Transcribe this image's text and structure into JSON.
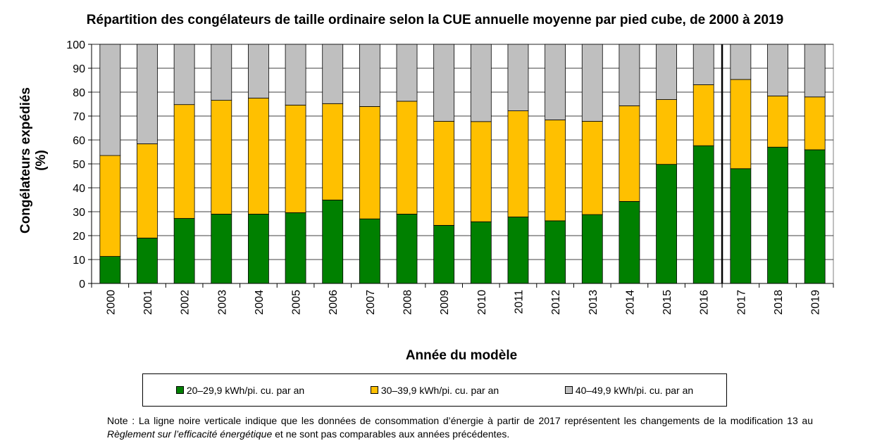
{
  "chart_data": {
    "type": "bar",
    "stacked": true,
    "title": "Répartition des congélateurs de taille ordinaire selon la CUE annuelle moyenne par pied cube, de 2000 à 2019",
    "xlabel": "Année du modèle",
    "ylabel_lines": [
      "Congélateurs expédiés",
      "(%)"
    ],
    "ylim": [
      0,
      100
    ],
    "yticks": [
      0,
      10,
      20,
      30,
      40,
      50,
      60,
      70,
      80,
      90,
      100
    ],
    "grid": true,
    "legend_position": "bottom",
    "categories": [
      "2000",
      "2001",
      "2002",
      "2003",
      "2004",
      "2005",
      "2006",
      "2007",
      "2008",
      "2009",
      "2010",
      "2011",
      "2012",
      "2013",
      "2014",
      "2015",
      "2016",
      "2017",
      "2018",
      "2019"
    ],
    "series": [
      {
        "name": "20–29,9 kWh/pi. cu. par an",
        "color": "#008000",
        "values": [
          11.3,
          19,
          27.2,
          29,
          29,
          29.6,
          34.9,
          27,
          29,
          24.3,
          25.8,
          27.8,
          26.2,
          28.8,
          34.3,
          49.8,
          57.6,
          48,
          57,
          55.9
        ]
      },
      {
        "name": "30–39,9 kWh/pi. cu. par an",
        "color": "#FFC000",
        "values": [
          42.2,
          39.4,
          47.6,
          47.6,
          48.5,
          45,
          40.3,
          47,
          47.2,
          43.5,
          41.9,
          44.4,
          42.2,
          39,
          40,
          27.1,
          25.5,
          37.3,
          21.4,
          22.1
        ]
      },
      {
        "name": "40–49,9 kWh/pi. cu. par an",
        "color": "#BFBFBF",
        "values": [
          46.5,
          41.6,
          25.2,
          23.4,
          22.5,
          25.4,
          24.8,
          26,
          23.8,
          32.2,
          32.3,
          27.8,
          31.6,
          32.2,
          25.7,
          23.1,
          16.9,
          14.7,
          21.6,
          22
        ]
      }
    ],
    "divider_between": [
      "2016",
      "2017"
    ]
  },
  "note": {
    "prefix": "Note : La ligne noire verticale indique que les données de consommation d’énergie à partir de 2017 représentent les changements de la modification 13 au ",
    "italic": "Règlement sur l’efficacité énergétique",
    "suffix": " et ne sont pas comparables aux années précédentes."
  }
}
